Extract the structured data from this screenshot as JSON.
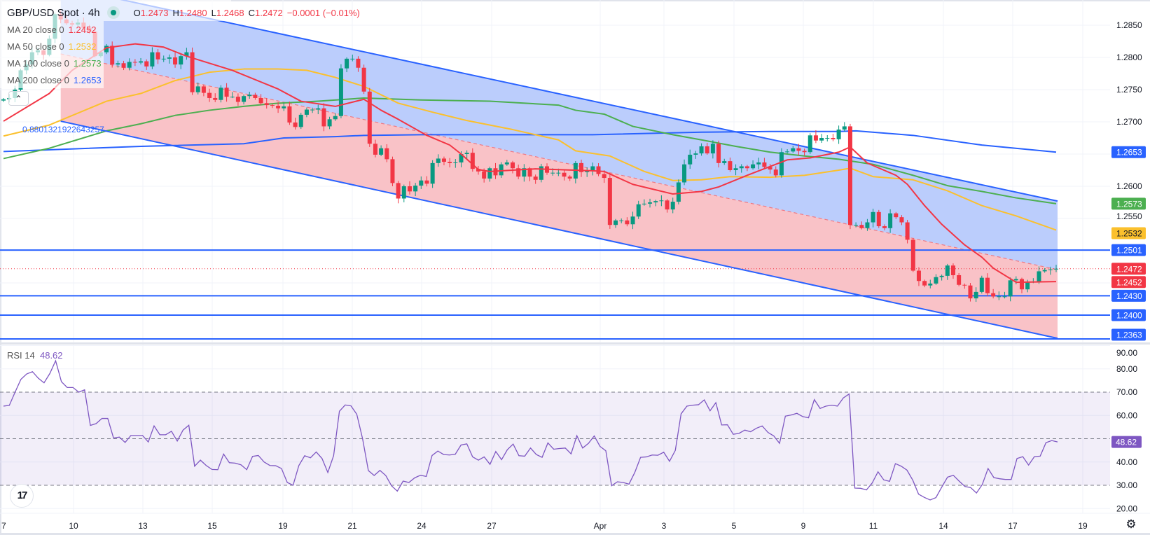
{
  "header": {
    "symbol": "GBP/USD Spot · 4h",
    "o_label": "O",
    "o": "1.2473",
    "h_label": "H",
    "h": "1.2480",
    "l_label": "L",
    "l": "1.2468",
    "c_label": "C",
    "c": "1.2472",
    "change": "−0.0001 (−0.01%)"
  },
  "indicators": [
    {
      "label": "MA 20 close 0",
      "value": "1.2452",
      "color": "#f23645"
    },
    {
      "label": "MA 50 close 0",
      "value": "1.2532",
      "color": "#fbc02d"
    },
    {
      "label": "MA 100 close 0",
      "value": "1.2573",
      "color": "#4caf50"
    },
    {
      "label": "MA 200 close 0",
      "value": "1.2653",
      "color": "#2962ff"
    }
  ],
  "rsi_legend": {
    "label": "RSI 14",
    "value": "48.62",
    "color": "#7e57c2"
  },
  "channel_label": "0.8801321922643257",
  "collapse_icon": "chevron-up-icon",
  "logo_text": "TV",
  "settings_icon": "gear-icon",
  "colors": {
    "up": "#089981",
    "down": "#f23645",
    "channel_upper_fill": "#bbcdfc",
    "channel_lower_fill": "#f9c2c7",
    "level": "#2962ff",
    "rsi": "#7e57c2"
  },
  "price_axis": {
    "ticks": [
      "1.2850",
      "1.2800",
      "1.2750",
      "1.2700",
      "1.2600",
      "1.2550"
    ],
    "labels": [
      {
        "text": "1.2653",
        "bg": "#2962ff",
        "fg": "#ffffff"
      },
      {
        "text": "1.2573",
        "bg": "#4caf50",
        "fg": "#ffffff"
      },
      {
        "text": "1.2532",
        "bg": "#fbc02d",
        "fg": "#131722"
      },
      {
        "text": "1.2501",
        "bg": "#2962ff",
        "fg": "#ffffff"
      },
      {
        "text": "1.2472",
        "bg": "#f23645",
        "fg": "#ffffff"
      },
      {
        "text": "1.2452",
        "bg": "#f23645",
        "fg": "#ffffff"
      },
      {
        "text": "1.2430",
        "bg": "#2962ff",
        "fg": "#ffffff"
      },
      {
        "text": "1.2400",
        "bg": "#2962ff",
        "fg": "#ffffff"
      },
      {
        "text": "1.2363",
        "bg": "#2962ff",
        "fg": "#ffffff"
      }
    ]
  },
  "rsi_axis": {
    "ticks": [
      "90.00",
      "80.00",
      "70.00",
      "60.00",
      "40.00",
      "30.00",
      "20.00"
    ],
    "value_label": "48.62"
  },
  "time_axis": {
    "labels": [
      "7",
      "10",
      "13",
      "15",
      "19",
      "21",
      "24",
      "27",
      "Apr",
      "3",
      "5",
      "9",
      "11",
      "14",
      "17",
      "19"
    ]
  },
  "chart_data": {
    "type": "candlestick",
    "symbol": "GBP/USD",
    "interval": "4h",
    "ylim": [
      1.234,
      1.289
    ],
    "close": [
      1.2735,
      1.2737,
      1.275,
      1.278,
      1.2789,
      1.2808,
      1.2811,
      1.2804,
      1.2829,
      1.2867,
      1.2859,
      1.2853,
      1.2851,
      1.2854,
      1.2846,
      1.284,
      1.2802,
      1.2808,
      1.2818,
      1.2789,
      1.2791,
      1.2784,
      1.2793,
      1.2792,
      1.2794,
      1.2786,
      1.2808,
      1.2797,
      1.2798,
      1.28,
      1.2789,
      1.2802,
      1.2808,
      1.2746,
      1.2755,
      1.2745,
      1.2737,
      1.2734,
      1.2753,
      1.2739,
      1.2739,
      1.2731,
      1.274,
      1.2742,
      1.2737,
      1.2729,
      1.2726,
      1.2725,
      1.2721,
      1.2724,
      1.2699,
      1.2692,
      1.2711,
      1.2719,
      1.2719,
      1.2721,
      1.2693,
      1.2704,
      1.2709,
      1.2783,
      1.2798,
      1.2798,
      1.2784,
      1.2747,
      1.2666,
      1.2649,
      1.2659,
      1.2642,
      1.2605,
      1.2581,
      1.26,
      1.2592,
      1.2601,
      1.2609,
      1.2604,
      1.2636,
      1.2643,
      1.2638,
      1.2636,
      1.2637,
      1.265,
      1.2652,
      1.2627,
      1.2623,
      1.2612,
      1.2628,
      1.2617,
      1.2634,
      1.2637,
      1.2628,
      1.2615,
      1.2628,
      1.2615,
      1.261,
      1.2631,
      1.2621,
      1.2621,
      1.2621,
      1.2615,
      1.2612,
      1.2636,
      1.2622,
      1.2624,
      1.2631,
      1.2619,
      1.2613,
      1.254,
      1.2547,
      1.2547,
      1.2541,
      1.2553,
      1.2572,
      1.2573,
      1.2575,
      1.2577,
      1.2578,
      1.2564,
      1.2576,
      1.2606,
      1.2634,
      1.2649,
      1.2651,
      1.2662,
      1.2651,
      1.2666,
      1.2636,
      1.2639,
      1.2625,
      1.2628,
      1.2631,
      1.2628,
      1.2634,
      1.2637,
      1.263,
      1.2626,
      1.2617,
      1.2653,
      1.2654,
      1.2659,
      1.2655,
      1.2653,
      1.2679,
      1.2671,
      1.2675,
      1.2675,
      1.2673,
      1.2688,
      1.2693,
      1.254,
      1.254,
      1.2535,
      1.2544,
      1.256,
      1.2538,
      1.2535,
      1.2558,
      1.2552,
      1.2544,
      1.2517,
      1.2469,
      1.2453,
      1.2446,
      1.2449,
      1.2459,
      1.2461,
      1.2477,
      1.2462,
      1.2447,
      1.2446,
      1.2426,
      1.2436,
      1.2458,
      1.2434,
      1.2429,
      1.2429,
      1.2429,
      1.2454,
      1.2456,
      1.244,
      1.2452,
      1.2452,
      1.2468,
      1.247,
      1.2471,
      1.2472
    ],
    "ma20": [
      [
        0,
        1.2701
      ],
      [
        8,
        1.2744
      ],
      [
        12,
        1.278
      ],
      [
        18,
        1.2815
      ],
      [
        23,
        1.2821
      ],
      [
        28,
        1.2816
      ],
      [
        32,
        1.2802
      ],
      [
        40,
        1.278
      ],
      [
        48,
        1.2751
      ],
      [
        52,
        1.2732
      ],
      [
        58,
        1.2724
      ],
      [
        63,
        1.2735
      ],
      [
        66,
        1.2718
      ],
      [
        69,
        1.2704
      ],
      [
        74,
        1.2679
      ],
      [
        78,
        1.2664
      ],
      [
        80,
        1.265
      ],
      [
        83,
        1.2626
      ],
      [
        85,
        1.2623
      ],
      [
        93,
        1.2627
      ],
      [
        103,
        1.2624
      ],
      [
        105,
        1.2623
      ],
      [
        110,
        1.2603
      ],
      [
        117,
        1.2588
      ],
      [
        122,
        1.2592
      ],
      [
        125,
        1.2599
      ],
      [
        130,
        1.2617
      ],
      [
        137,
        1.2641
      ],
      [
        141,
        1.2644
      ],
      [
        146,
        1.2653
      ],
      [
        148,
        1.2661
      ],
      [
        151,
        1.2636
      ],
      [
        156,
        1.2617
      ],
      [
        158,
        1.2603
      ],
      [
        161,
        1.257
      ],
      [
        164,
        1.2541
      ],
      [
        168,
        1.2509
      ],
      [
        171,
        1.249
      ],
      [
        173,
        1.2473
      ],
      [
        177,
        1.2451
      ],
      [
        184,
        1.2452
      ]
    ],
    "ma50": [
      [
        0,
        1.2678
      ],
      [
        8,
        1.2695
      ],
      [
        18,
        1.2732
      ],
      [
        24,
        1.2744
      ],
      [
        30,
        1.2764
      ],
      [
        36,
        1.2777
      ],
      [
        42,
        1.2782
      ],
      [
        48,
        1.2782
      ],
      [
        53,
        1.278
      ],
      [
        58,
        1.2769
      ],
      [
        63,
        1.2755
      ],
      [
        69,
        1.2729
      ],
      [
        75,
        1.2715
      ],
      [
        81,
        1.2702
      ],
      [
        89,
        1.2688
      ],
      [
        97,
        1.2672
      ],
      [
        100,
        1.2655
      ],
      [
        106,
        1.2647
      ],
      [
        112,
        1.2623
      ],
      [
        117,
        1.2609
      ],
      [
        122,
        1.261
      ],
      [
        127,
        1.2615
      ],
      [
        134,
        1.2614
      ],
      [
        140,
        1.2617
      ],
      [
        146,
        1.2625
      ],
      [
        148,
        1.2628
      ],
      [
        152,
        1.2615
      ],
      [
        159,
        1.261
      ],
      [
        165,
        1.2593
      ],
      [
        171,
        1.257
      ],
      [
        177,
        1.2554
      ],
      [
        184,
        1.2532
      ]
    ],
    "ma100": [
      [
        0,
        1.2643
      ],
      [
        8,
        1.2659
      ],
      [
        18,
        1.2686
      ],
      [
        24,
        1.2697
      ],
      [
        30,
        1.271
      ],
      [
        36,
        1.2718
      ],
      [
        42,
        1.2724
      ],
      [
        48,
        1.2729
      ],
      [
        55,
        1.2732
      ],
      [
        63,
        1.2737
      ],
      [
        73,
        1.2734
      ],
      [
        85,
        1.2732
      ],
      [
        97,
        1.2726
      ],
      [
        100,
        1.2718
      ],
      [
        105,
        1.2712
      ],
      [
        110,
        1.2693
      ],
      [
        117,
        1.268
      ],
      [
        122,
        1.2672
      ],
      [
        128,
        1.2662
      ],
      [
        134,
        1.2653
      ],
      [
        140,
        1.2647
      ],
      [
        146,
        1.2642
      ],
      [
        152,
        1.2634
      ],
      [
        159,
        1.2617
      ],
      [
        165,
        1.2601
      ],
      [
        171,
        1.2592
      ],
      [
        177,
        1.2582
      ],
      [
        184,
        1.2573
      ]
    ],
    "ma200": [
      [
        0,
        1.2654
      ],
      [
        24,
        1.2662
      ],
      [
        42,
        1.2666
      ],
      [
        49,
        1.2675
      ],
      [
        58,
        1.2677
      ],
      [
        63,
        1.2679
      ],
      [
        73,
        1.268
      ],
      [
        103,
        1.268
      ],
      [
        122,
        1.2684
      ],
      [
        134,
        1.2685
      ],
      [
        146,
        1.2685
      ],
      [
        149,
        1.2686
      ],
      [
        159,
        1.2679
      ],
      [
        171,
        1.2664
      ],
      [
        184,
        1.2653
      ]
    ],
    "channel": {
      "upper": [
        [
          22,
          1.2887
        ],
        [
          184,
          1.2577
        ]
      ],
      "lower": [
        [
          10,
          1.2701
        ],
        [
          184,
          1.2364
        ]
      ],
      "start_bar": 10,
      "end_bar": 184
    },
    "levels": [
      1.2501,
      1.243,
      1.24,
      1.2363
    ],
    "last_price": 1.2472,
    "rsi": {
      "period": 14,
      "ylim": [
        15,
        95
      ],
      "bands": [
        30,
        50,
        70
      ],
      "values": [
        64,
        64.3,
        70,
        75.5,
        77.8,
        78.8,
        76,
        74,
        78,
        83.5,
        74.5,
        72,
        72,
        70,
        71,
        55.7,
        56.5,
        58.7,
        58.7,
        50.3,
        50.7,
        48.4,
        51.4,
        51.4,
        51.4,
        48.6,
        55.5,
        51.7,
        51.7,
        53.2,
        49,
        53.7,
        55.8,
        38.2,
        40.8,
        38.5,
        36.8,
        36.7,
        43.4,
        39.7,
        39.5,
        38.8,
        36.7,
        42.4,
        42.8,
        40,
        38.5,
        38.4,
        37.2,
        31.2,
        30,
        38.5,
        42.7,
        41.8,
        44.3,
        41.5,
        35.5,
        42.7,
        61.8,
        64.5,
        64.1,
        60.5,
        50,
        36.3,
        34.2,
        36.4,
        34.2,
        29.8,
        27.5,
        31.8,
        31.2,
        33.2,
        34.3,
        33.8,
        42.8,
        44.7,
        43.2,
        43,
        43.3,
        47.3,
        47.8,
        42.2,
        40.8,
        42.2,
        39,
        44.5,
        41,
        45.3,
        47.7,
        42.7,
        42.5,
        46,
        43.2,
        42,
        48.2,
        45.5,
        45.8,
        46,
        43.5,
        51.3,
        46,
        48,
        51.2,
        46.7,
        44.8,
        29.8,
        31.5,
        31.2,
        30.5,
        35.5,
        42,
        42.2,
        43,
        42.9,
        44.2,
        40.3,
        45,
        60.7,
        64,
        64.4,
        64.6,
        66.7,
        62,
        65.5,
        55.9,
        56,
        51.9,
        52.3,
        53.7,
        53,
        54.5,
        55.5,
        52.7,
        51.2,
        48,
        59.7,
        60.2,
        60.9,
        59.5,
        59,
        66.8,
        63,
        64,
        64.4,
        64,
        67.5,
        69.2,
        28.8,
        28.7,
        28,
        31,
        35.8,
        32.3,
        31.7,
        39.3,
        38.2,
        36.5,
        32.2,
        26.2,
        24.8,
        23.7,
        24.7,
        29.2,
        33.5,
        34.3,
        31.8,
        29.5,
        29,
        26.7,
        30.3,
        37.2,
        33.3,
        32.8,
        32.5,
        32.5,
        41.5,
        42.3,
        38.7,
        42.3,
        42.5,
        48.3,
        49.2,
        48.62
      ]
    }
  }
}
